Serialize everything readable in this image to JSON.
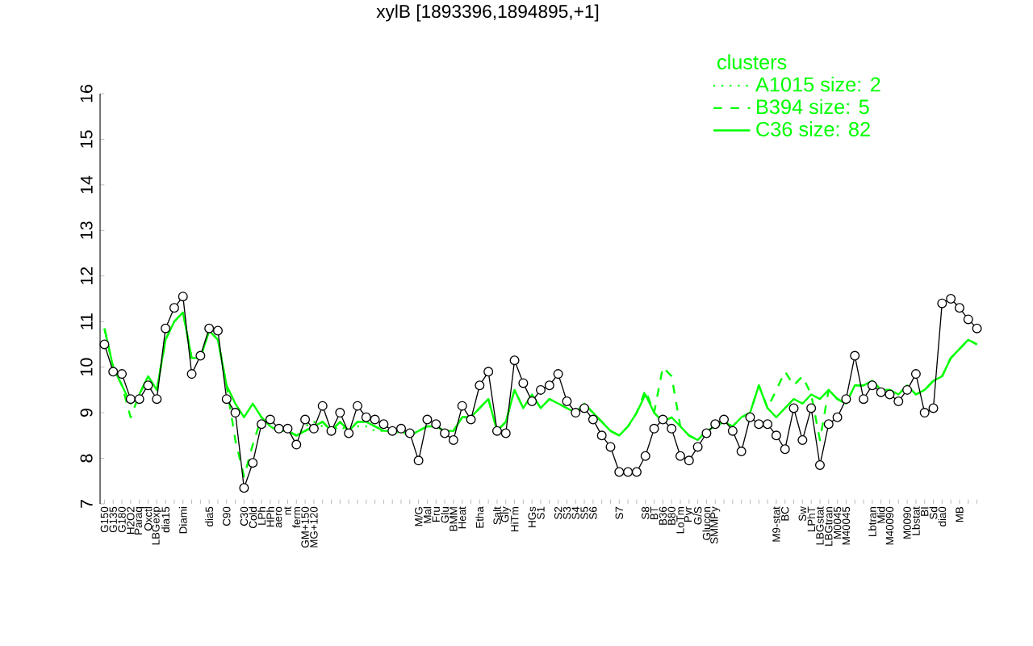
{
  "chart_data": {
    "type": "line",
    "title": "xylB [1893396,1894895,+1]",
    "legend_title": "clusters",
    "legend": "top right",
    "categories": [
      "G150",
      "G135",
      "G180",
      "H2O2",
      "Paraq",
      "Oxctl",
      "LBGexp",
      "dia15",
      null,
      "Diami",
      null,
      null,
      "dia5",
      null,
      "C90",
      null,
      "C30",
      "Cold",
      "LPh",
      "HPh",
      "aero",
      "nt",
      "ferm",
      "GM+150",
      "MG+120",
      null,
      null,
      null,
      null,
      null,
      null,
      null,
      null,
      null,
      null,
      null,
      "M/G",
      "Mal",
      "Fru",
      "Glu",
      "BMM",
      "Heat",
      null,
      "Etha",
      null,
      "Salt",
      "Gly",
      "HiTm",
      null,
      "HGs",
      "S1",
      null,
      "S2",
      "S3",
      "S4",
      "S5",
      "S6",
      null,
      null,
      "S7",
      null,
      null,
      "S8",
      "BT",
      "B36",
      "B80",
      "LoTm",
      "Pyr",
      "G/S",
      "Glucon",
      "SMMPy",
      null,
      null,
      null,
      null,
      null,
      null,
      "M9-stat",
      "BC",
      null,
      "Sw",
      "LPhT",
      "LBGstat",
      "LBGtran",
      "M0045",
      "M40045",
      null,
      null,
      "Lbtran",
      "Mid",
      "M40090",
      null,
      "M0090",
      "Lbstat",
      "BI",
      "Sd",
      "dia0",
      null,
      "MB",
      null,
      null
    ],
    "ylim": [
      7,
      16
    ],
    "yticks": [
      7,
      8,
      9,
      10,
      11,
      12,
      13,
      14,
      15,
      16
    ],
    "series": [
      {
        "name": "A1015 size: 2",
        "color": "#00ff00",
        "line_style": "dotted",
        "marker": "none",
        "values": [
          null,
          null,
          null,
          null,
          null,
          null,
          null,
          null,
          null,
          null,
          null,
          null,
          null,
          null,
          null,
          null,
          null,
          null,
          null,
          null,
          8.6,
          8.6,
          8.5,
          8.7,
          8.8,
          8.7,
          8.6,
          8.7,
          8.6,
          8.7,
          8.7,
          8.6,
          8.6,
          8.6,
          8.55,
          null,
          null,
          null,
          null,
          null,
          null,
          null,
          null,
          null,
          null,
          null,
          null,
          null,
          null,
          null,
          null,
          null,
          null,
          null,
          null,
          null,
          null,
          null,
          null,
          null,
          null,
          null,
          null,
          null,
          null,
          null,
          null,
          null,
          null,
          null,
          null,
          null,
          null,
          null,
          null,
          null,
          null,
          null,
          null,
          null,
          null,
          null,
          null,
          null,
          null,
          null,
          null,
          null,
          null,
          null,
          null,
          null,
          null,
          null,
          null,
          null,
          null,
          null,
          null,
          null,
          null
        ]
      },
      {
        "name": "B394 size: 5",
        "color": "#00ff00",
        "line_style": "dashed",
        "marker": "none",
        "values": [
          10.85,
          10.0,
          9.6,
          8.9,
          9.4,
          9.8,
          9.5,
          10.6,
          11.0,
          11.2,
          10.2,
          10.2,
          10.8,
          10.6,
          9.6,
          8.4,
          7.6,
          8.3,
          8.9,
          8.7,
          8.6,
          8.6,
          8.5,
          8.6,
          8.7,
          8.8,
          8.6,
          8.8,
          8.6,
          8.8,
          8.8,
          8.7,
          8.6,
          8.6,
          8.6,
          8.5,
          8.6,
          8.7,
          8.7,
          8.6,
          8.6,
          8.9,
          8.9,
          9.1,
          9.3,
          8.6,
          8.8,
          9.5,
          9.1,
          9.4,
          9.1,
          9.3,
          9.2,
          9.1,
          9.0,
          9.2,
          9.0,
          8.8,
          8.6,
          8.5,
          8.7,
          9.0,
          9.5,
          9.0,
          10.0,
          9.8,
          8.7,
          8.5,
          8.4,
          8.6,
          8.7,
          8.8,
          8.7,
          8.9,
          9.0,
          9.6,
          9.1,
          9.5,
          9.9,
          9.6,
          9.8,
          9.4,
          8.4,
          9.5,
          9.3,
          9.2,
          9.6,
          9.6,
          9.7,
          9.5,
          9.5,
          9.4,
          9.6,
          9.4,
          9.5,
          9.7,
          9.8,
          10.2,
          10.4,
          10.6,
          10.5
        ]
      },
      {
        "name": "C36 size: 82",
        "color": "#00ff00",
        "line_style": "solid",
        "marker": "none",
        "values": [
          10.85,
          10.0,
          9.6,
          9.2,
          9.4,
          9.8,
          9.5,
          10.6,
          11.0,
          11.2,
          10.2,
          10.2,
          10.8,
          10.6,
          9.6,
          9.2,
          8.9,
          9.2,
          8.9,
          8.7,
          8.6,
          8.6,
          8.5,
          8.6,
          8.7,
          8.8,
          8.6,
          8.8,
          8.6,
          8.8,
          8.8,
          8.7,
          8.6,
          8.6,
          8.6,
          8.5,
          8.6,
          8.7,
          8.7,
          8.6,
          8.6,
          8.9,
          8.9,
          9.1,
          9.3,
          8.6,
          8.8,
          9.5,
          9.1,
          9.4,
          9.1,
          9.3,
          9.2,
          9.1,
          9.0,
          9.2,
          9.0,
          8.8,
          8.6,
          8.5,
          8.7,
          9.0,
          9.4,
          9.0,
          8.8,
          8.9,
          8.7,
          8.5,
          8.4,
          8.6,
          8.7,
          8.8,
          8.7,
          8.9,
          9.0,
          9.6,
          9.1,
          8.9,
          9.1,
          9.3,
          9.2,
          9.4,
          9.3,
          9.5,
          9.3,
          9.2,
          9.6,
          9.6,
          9.7,
          9.5,
          9.5,
          9.4,
          9.6,
          9.4,
          9.5,
          9.7,
          9.8,
          10.2,
          10.4,
          10.6,
          10.5
        ]
      },
      {
        "color": "#000000",
        "line_style": "solid",
        "marker": "circle",
        "values": [
          10.5,
          9.9,
          9.85,
          9.3,
          9.3,
          9.6,
          9.3,
          10.85,
          11.3,
          11.55,
          9.85,
          10.25,
          10.85,
          10.8,
          9.3,
          9.0,
          7.35,
          7.9,
          8.75,
          8.85,
          8.65,
          8.65,
          8.3,
          8.85,
          8.65,
          9.15,
          8.6,
          9.0,
          8.55,
          9.15,
          8.9,
          8.85,
          8.75,
          8.6,
          8.65,
          8.55,
          7.95,
          8.85,
          8.75,
          8.55,
          8.4,
          9.15,
          8.85,
          9.6,
          9.9,
          8.6,
          8.55,
          10.15,
          9.65,
          9.25,
          9.5,
          9.6,
          9.85,
          9.25,
          9.0,
          9.1,
          8.85,
          8.5,
          8.25,
          7.7,
          7.7,
          7.7,
          8.05,
          8.65,
          8.85,
          8.65,
          8.05,
          7.95,
          8.25,
          8.55,
          8.75,
          8.85,
          8.6,
          8.15,
          8.9,
          8.75,
          8.75,
          8.5,
          8.2,
          9.1,
          8.4,
          9.1,
          7.85,
          8.75,
          8.9,
          9.3,
          10.25,
          9.3,
          9.6,
          9.45,
          9.4,
          9.25,
          9.5,
          9.85,
          9.0,
          9.1,
          11.4,
          11.5,
          11.3,
          11.05,
          10.85
        ]
      }
    ]
  }
}
